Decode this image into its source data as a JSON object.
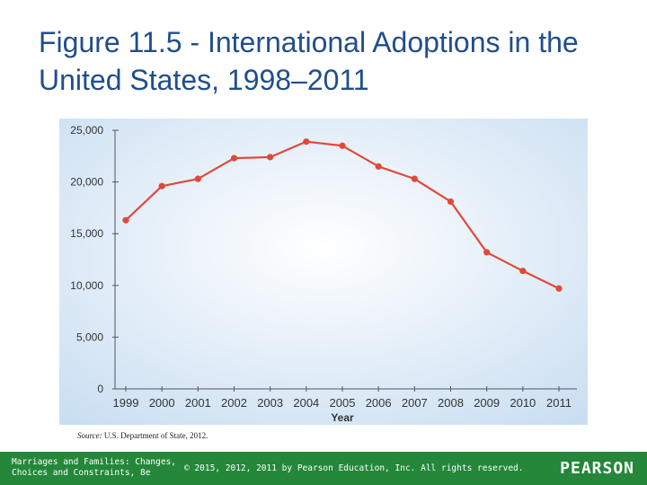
{
  "slide": {
    "title": "Figure 11.5 - International Adoptions in the United States, 1998–2011"
  },
  "chart_data": {
    "type": "line",
    "title": "",
    "xlabel": "Year",
    "ylabel": "",
    "x": [
      "1999",
      "2000",
      "2001",
      "2002",
      "2003",
      "2004",
      "2005",
      "2006",
      "2007",
      "2008",
      "2009",
      "2010",
      "2011"
    ],
    "y": [
      16300,
      19600,
      20300,
      22300,
      22400,
      23900,
      23500,
      21500,
      20300,
      18100,
      13200,
      11400,
      9700
    ],
    "ylim": [
      0,
      25000
    ],
    "yticks": [
      0,
      5000,
      10000,
      15000,
      20000,
      25000
    ],
    "ytick_labels": [
      "0",
      "5,000",
      "10,000",
      "15,000",
      "20,000",
      "25,000"
    ],
    "grid": false,
    "line_color": "#e0493a"
  },
  "source": {
    "label": "Source:",
    "text": "U.S. Department of State, 2012."
  },
  "footer": {
    "book": "Marriages and Families: Changes, Choices and Constraints, 8e",
    "copyright": "© 2015, 2012, 2011 by Pearson Education, Inc. All rights reserved.",
    "brand": "PEARSON",
    "background": "#24873a"
  }
}
